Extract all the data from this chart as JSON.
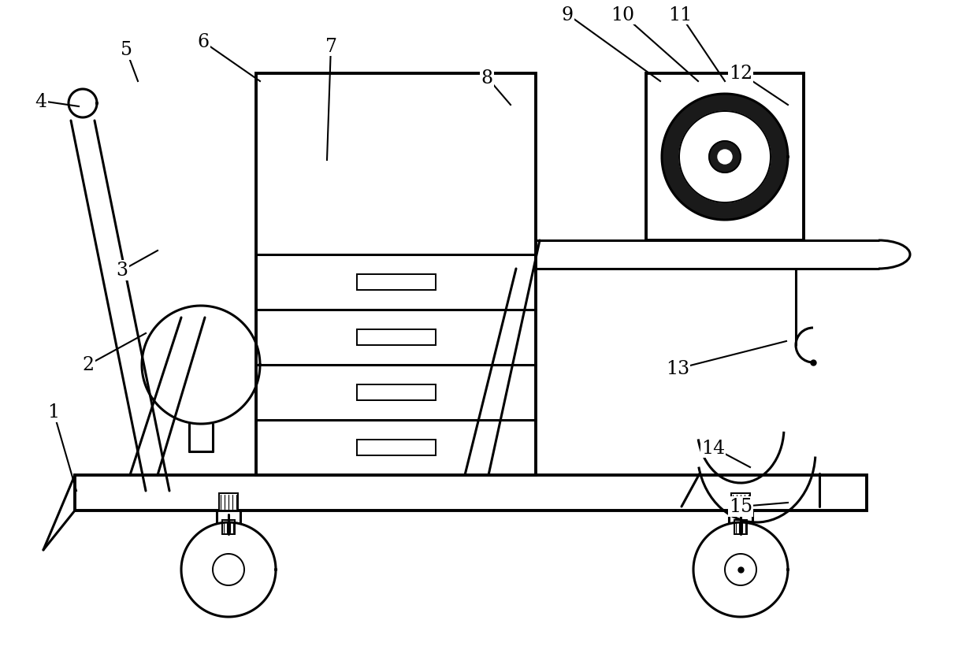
{
  "bg_color": "#ffffff",
  "line_color": "#000000",
  "lw": 2.2,
  "lw_thin": 1.4,
  "lw_thick": 2.8
}
